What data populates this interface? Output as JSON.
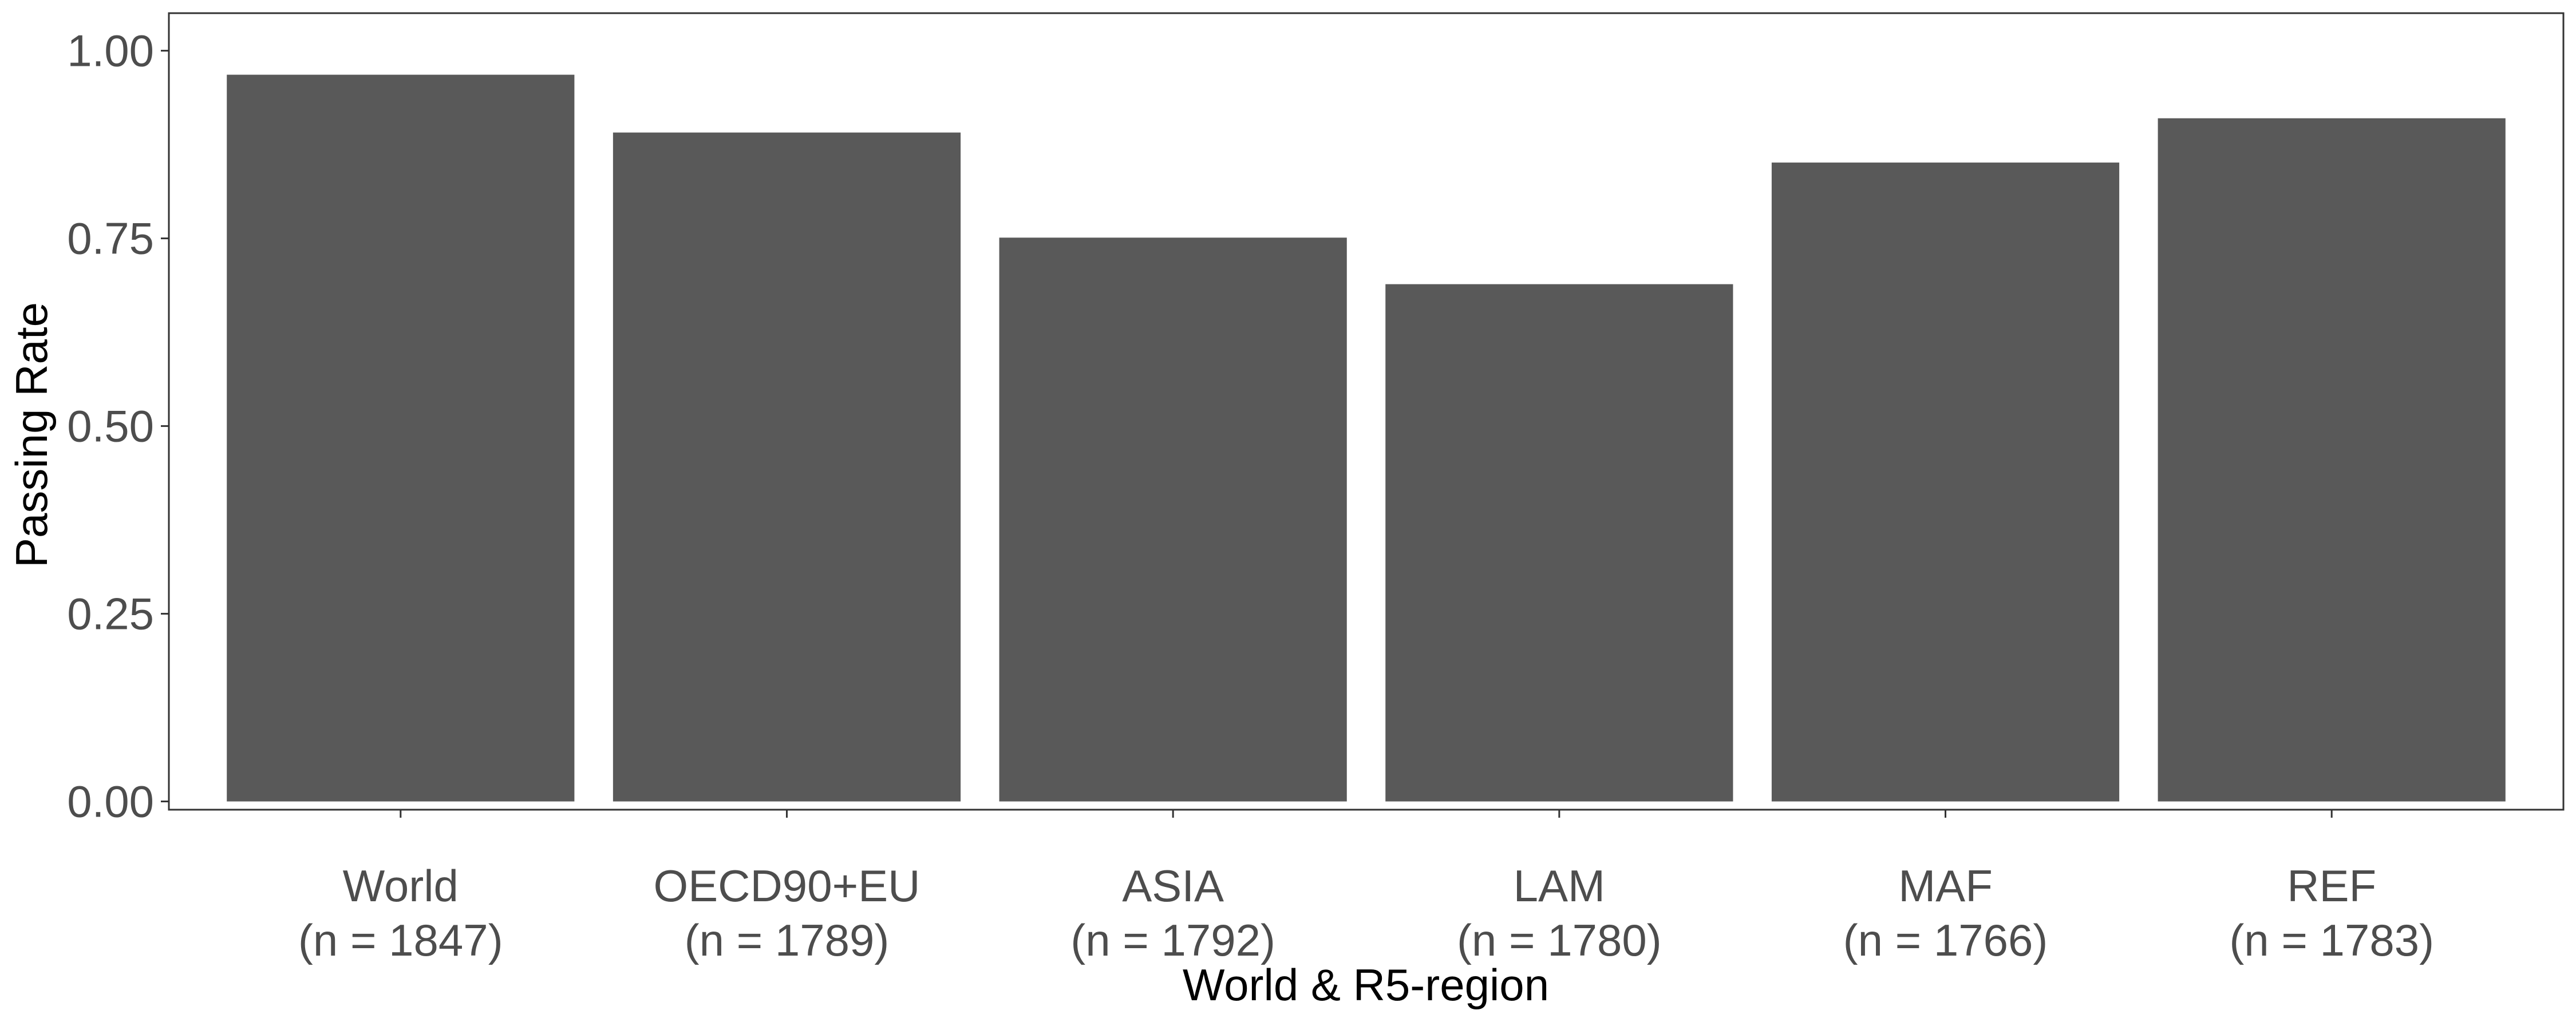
{
  "chart_data": {
    "type": "bar",
    "categories": [
      {
        "name": "World",
        "n": "(n = 1847)"
      },
      {
        "name": "OECD90+EU",
        "n": "(n = 1789)"
      },
      {
        "name": "ASIA",
        "n": "(n = 1792)"
      },
      {
        "name": "LAM",
        "n": "(n = 1780)"
      },
      {
        "name": "MAF",
        "n": "(n = 1766)"
      },
      {
        "name": "REF",
        "n": "(n = 1783)"
      }
    ],
    "values": [
      0.968,
      0.891,
      0.751,
      0.689,
      0.851,
      0.91
    ],
    "title": "",
    "xlabel": "World & R5-region",
    "ylabel": "Passing Rate",
    "ylim": [
      -0.011,
      1.05
    ],
    "yticks": [
      "0.00",
      "0.25",
      "0.50",
      "0.75",
      "1.00"
    ],
    "ytick_values": [
      0,
      0.25,
      0.5,
      0.75,
      1.0
    ],
    "grid": false,
    "legend": "none",
    "colors": {
      "bar": "#595959",
      "axis": "#000000",
      "tick_text": "#4d4d4d"
    }
  }
}
